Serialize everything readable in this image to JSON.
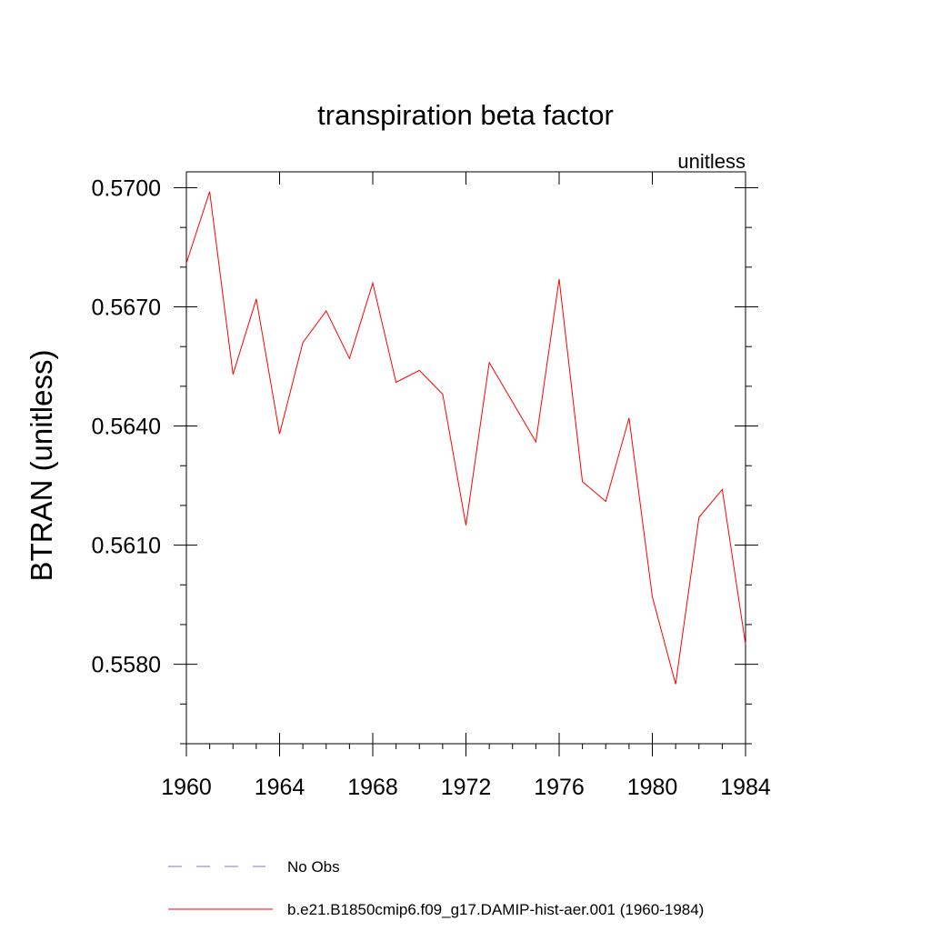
{
  "chart_data": {
    "type": "line",
    "title": "transpiration beta factor",
    "units_label": "unitless",
    "ylabel": "BTRAN  (unitless)",
    "xlabel": "",
    "xlim": [
      1960,
      1984
    ],
    "ylim": [
      0.556,
      0.5704
    ],
    "x_ticks": [
      1960,
      1964,
      1968,
      1972,
      1976,
      1980,
      1984
    ],
    "x_tick_labels": [
      "1960",
      "1964",
      "1968",
      "1972",
      "1976",
      "1980",
      "1984"
    ],
    "y_ticks": [
      0.558,
      0.561,
      0.564,
      0.567,
      0.57
    ],
    "y_tick_labels": [
      "0.5580",
      "0.5610",
      "0.5640",
      "0.5670",
      "0.5700"
    ],
    "y_minor_ticks": [
      0.556,
      0.557,
      0.559,
      0.56,
      0.562,
      0.563,
      0.565,
      0.566,
      0.568,
      0.569
    ],
    "grid": false,
    "legend_position": "bottom",
    "series": [
      {
        "name": "b.e21.B1850cmip6.f09_g17.DAMIP-hist-aer.001 (1960-1984)",
        "color": "#ff0000",
        "style": "solid",
        "x": [
          1960,
          1961,
          1962,
          1963,
          1964,
          1965,
          1966,
          1967,
          1968,
          1969,
          1970,
          1971,
          1972,
          1973,
          1974,
          1975,
          1976,
          1977,
          1978,
          1979,
          1980,
          1981,
          1982,
          1983,
          1984
        ],
        "values": [
          0.5681,
          0.5699,
          0.5653,
          0.5672,
          0.5638,
          0.5661,
          0.5669,
          0.5657,
          0.5676,
          0.5651,
          0.5654,
          0.5648,
          0.5615,
          0.5656,
          0.5646,
          0.5636,
          0.5677,
          0.5626,
          0.5621,
          0.5642,
          0.5597,
          0.5575,
          0.5617,
          0.5624,
          0.5585
        ]
      }
    ],
    "legend": [
      {
        "label": "No Obs",
        "color": "#7777cc",
        "style": "dashed"
      },
      {
        "label": "b.e21.B1850cmip6.f09_g17.DAMIP-hist-aer.001 (1960-1984)",
        "color": "#ff0000",
        "style": "solid"
      }
    ]
  }
}
